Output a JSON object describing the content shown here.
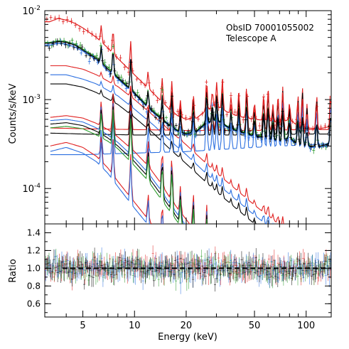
{
  "annotation": {
    "line1": "ObsID 70001055002",
    "line2": "Telescope A"
  },
  "chart_data": [
    {
      "type": "line",
      "panel": "spectrum",
      "xscale": "log",
      "yscale": "log",
      "xlim": [
        3,
        140
      ],
      "ylim": [
        4e-05,
        0.01
      ],
      "ylabel": "Counts/s/keV",
      "xlabel": "",
      "yticks": [
        {
          "value": 0.0001,
          "base": "10",
          "exp": "-4"
        },
        {
          "value": 0.001,
          "base": "10",
          "exp": "-3"
        },
        {
          "value": 0.01,
          "base": "10",
          "exp": "-2"
        }
      ],
      "series_colors": [
        "#e02020",
        "#2a9a2a",
        "#2b6fe0",
        "#000000"
      ],
      "data_series": [
        {
          "color": "#e02020",
          "x": [
            3.2,
            3.6,
            4,
            4.5,
            5,
            6,
            7,
            8,
            10,
            12,
            14,
            16,
            18,
            20,
            23,
            26,
            30,
            35,
            40,
            50,
            60,
            70,
            80,
            90,
            100,
            120,
            140
          ],
          "y": [
            0.0075,
            0.0082,
            0.0078,
            0.0072,
            0.0064,
            0.005,
            0.0038,
            0.0029,
            0.0019,
            0.00135,
            0.001,
            0.00078,
            0.00065,
            0.0006,
            0.00062,
            0.00075,
            0.00085,
            0.00072,
            0.00065,
            0.0006,
            0.00058,
            0.00055,
            0.0006,
            0.0005,
            0.00048,
            0.00047,
            0.0005
          ]
        },
        {
          "color": "#2a9a2a",
          "x": [
            3.2,
            3.6,
            4,
            4.5,
            5,
            6,
            7,
            8,
            10,
            12,
            14,
            16,
            18,
            20,
            23,
            26,
            30,
            35,
            40,
            50,
            60,
            70,
            80,
            90,
            100,
            120,
            140
          ],
          "y": [
            0.0044,
            0.0046,
            0.0045,
            0.0042,
            0.0037,
            0.003,
            0.0023,
            0.0018,
            0.0012,
            0.00085,
            0.00065,
            0.00052,
            0.00045,
            0.00042,
            0.00045,
            0.00055,
            0.0006,
            0.0005,
            0.00045,
            0.0004,
            0.00038,
            0.00035,
            0.00038,
            0.00032,
            0.0003,
            0.0003,
            0.00032
          ]
        },
        {
          "color": "#2b6fe0",
          "x": [
            3.2,
            3.6,
            4,
            4.5,
            5,
            6,
            7,
            8,
            10,
            12,
            14,
            16,
            18,
            20,
            23,
            26,
            30,
            35,
            40,
            50,
            60,
            70,
            80,
            90,
            100,
            120,
            140
          ],
          "y": [
            0.0041,
            0.0043,
            0.0042,
            0.0039,
            0.0035,
            0.0028,
            0.0021,
            0.0017,
            0.00115,
            0.0008,
            0.00062,
            0.0005,
            0.00043,
            0.0004,
            0.00043,
            0.00053,
            0.00058,
            0.00048,
            0.00043,
            0.00038,
            0.00036,
            0.00033,
            0.00036,
            0.0003,
            0.00029,
            0.00029,
            0.00031
          ]
        },
        {
          "color": "#000000",
          "x": [
            3.2,
            3.6,
            4,
            4.5,
            5,
            6,
            7,
            8,
            10,
            12,
            14,
            16,
            18,
            20,
            23,
            26,
            30,
            35,
            40,
            50,
            60,
            70,
            80,
            90,
            100,
            120,
            140
          ],
          "y": [
            0.0043,
            0.0045,
            0.0044,
            0.0041,
            0.0036,
            0.0029,
            0.0022,
            0.00175,
            0.00118,
            0.00082,
            0.00063,
            0.00051,
            0.00044,
            0.00041,
            0.00044,
            0.00054,
            0.00059,
            0.00049,
            0.00044,
            0.00039,
            0.00037,
            0.00034,
            0.00037,
            0.00031,
            0.0003,
            0.0003,
            0.00032
          ]
        }
      ],
      "model_curves": [
        {
          "color": "#e02020",
          "x": [
            3.2,
            4,
            5,
            6,
            8,
            10,
            13,
            16,
            20,
            30,
            50,
            80,
            140
          ],
          "y": [
            0.0024,
            0.0024,
            0.0022,
            0.0019,
            0.0014,
            0.001,
            0.00065,
            0.00045,
            0.00031,
            0.00015,
            6.5e-05,
            3.2e-05,
            1.4e-05
          ]
        },
        {
          "color": "#2b6fe0",
          "x": [
            3.2,
            4,
            5,
            6,
            8,
            10,
            13,
            16,
            20,
            30,
            50,
            80,
            140
          ],
          "y": [
            0.0019,
            0.0019,
            0.0017,
            0.0015,
            0.0011,
            0.00078,
            0.00051,
            0.00035,
            0.00024,
            0.000115,
            5e-05,
            2.5e-05,
            1.1e-05
          ]
        },
        {
          "color": "#000000",
          "x": [
            3.2,
            4,
            5,
            6,
            8,
            10,
            13,
            16,
            20,
            30,
            50,
            80,
            140
          ],
          "y": [
            0.0015,
            0.0015,
            0.00138,
            0.0012,
            0.00088,
            0.00063,
            0.00041,
            0.00028,
            0.00019,
            9.2e-05,
            4e-05,
            2e-05,
            9e-06
          ]
        },
        {
          "color": "#e02020",
          "x": [
            3.2,
            5,
            10,
            20,
            50,
            100,
            140
          ],
          "y": [
            0.00048,
            0.00047,
            0.00046,
            0.00045,
            0.00045,
            0.00046,
            0.00046
          ]
        },
        {
          "color": "#000000",
          "x": [
            3.2,
            5,
            10,
            20,
            50,
            100,
            140
          ],
          "y": [
            0.00042,
            0.00041,
            0.0004,
            0.0004,
            0.0004,
            0.00041,
            0.00041
          ]
        },
        {
          "color": "#2b6fe0",
          "x": [
            3.2,
            5,
            10,
            20,
            50,
            100,
            140
          ],
          "y": [
            0.00024,
            0.00024,
            0.00025,
            0.00026,
            0.00029,
            0.00031,
            0.00032
          ]
        },
        {
          "color": "#e02020",
          "x": [
            3.2,
            4,
            5,
            6,
            7,
            8,
            10,
            12,
            14,
            16,
            18,
            20,
            25,
            30
          ],
          "y": [
            0.00063,
            0.00066,
            0.00062,
            0.00054,
            0.00046,
            0.00038,
            0.00026,
            0.00018,
            0.00012,
            8e-05,
            5.8e-05,
            4.5e-05,
            2.5e-05,
            1.5e-05
          ]
        },
        {
          "color": "#2b6fe0",
          "x": [
            3.2,
            4,
            5,
            6,
            7,
            8,
            10,
            12,
            14,
            16,
            18,
            20,
            25,
            30
          ],
          "y": [
            0.00058,
            0.0006,
            0.00056,
            0.00048,
            0.0004,
            0.00033,
            0.00022,
            0.00015,
            0.0001,
            6.8e-05,
            5e-05,
            3.8e-05,
            2.1e-05,
            1.3e-05
          ]
        },
        {
          "color": "#000000",
          "x": [
            3.2,
            4,
            5,
            6,
            7,
            8,
            10,
            12,
            14,
            16,
            18,
            20,
            25,
            30
          ],
          "y": [
            0.00053,
            0.00055,
            0.00051,
            0.00044,
            0.00037,
            0.0003,
            0.0002,
            0.000135,
            9e-05,
            6.2e-05,
            4.5e-05,
            3.5e-05,
            1.9e-05,
            1.2e-05
          ]
        },
        {
          "color": "#2a9a2a",
          "x": [
            3.2,
            4,
            5,
            6,
            7,
            8,
            10,
            12,
            14,
            16,
            18,
            20,
            25,
            30
          ],
          "y": [
            0.00048,
            0.0005,
            0.00047,
            0.0004,
            0.00034,
            0.00028,
            0.00018,
            0.000122,
            8e-05,
            5.6e-05,
            4.1e-05,
            3.2e-05,
            1.7e-05,
            1.1e-05
          ]
        },
        {
          "color": "#e02020",
          "x": [
            3.2,
            4,
            5,
            6,
            7,
            8,
            9,
            10,
            12,
            14,
            16
          ],
          "y": [
            0.0003,
            0.00033,
            0.00029,
            0.00023,
            0.00017,
            0.00012,
            9e-05,
            7e-05,
            4.5e-05,
            3e-05,
            2e-05
          ]
        },
        {
          "color": "#2b6fe0",
          "x": [
            3.2,
            4,
            5,
            6,
            7,
            8,
            9,
            10,
            12,
            14,
            16
          ],
          "y": [
            0.00026,
            0.00029,
            0.00025,
            0.0002,
            0.000148,
            0.000105,
            7.8e-05,
            6e-05,
            3.9e-05,
            2.6e-05,
            1.7e-05
          ]
        }
      ],
      "line_energies_keV": [
        6.4,
        7.5,
        9.5,
        12,
        14.5,
        16.5,
        18.5,
        22,
        26.3,
        28.4,
        30.1,
        32.5,
        36.5,
        40.5,
        45,
        50,
        56.5,
        60,
        64,
        68.5,
        73,
        80,
        89.5,
        95,
        101,
        115,
        139
      ]
    },
    {
      "type": "scatter",
      "panel": "ratio",
      "xscale": "log",
      "xlim": [
        3,
        140
      ],
      "ylim": [
        0.45,
        1.5
      ],
      "ylabel": "Ratio",
      "xlabel": "Energy (keV)",
      "reference_line": 1.0,
      "xticks": [
        5,
        10,
        20,
        50,
        100
      ],
      "xtick_labels": [
        "5",
        "10",
        "20",
        "50",
        "100"
      ],
      "yticks": [
        0.6,
        0.8,
        1.0,
        1.2,
        1.4
      ],
      "ytick_labels": [
        "0.6",
        "0.8",
        "1.0",
        "1.2",
        "1.4"
      ],
      "series_colors": [
        "#e02020",
        "#2a9a2a",
        "#2b6fe0",
        "#000000"
      ],
      "scatter_sigma": 0.15
    }
  ]
}
